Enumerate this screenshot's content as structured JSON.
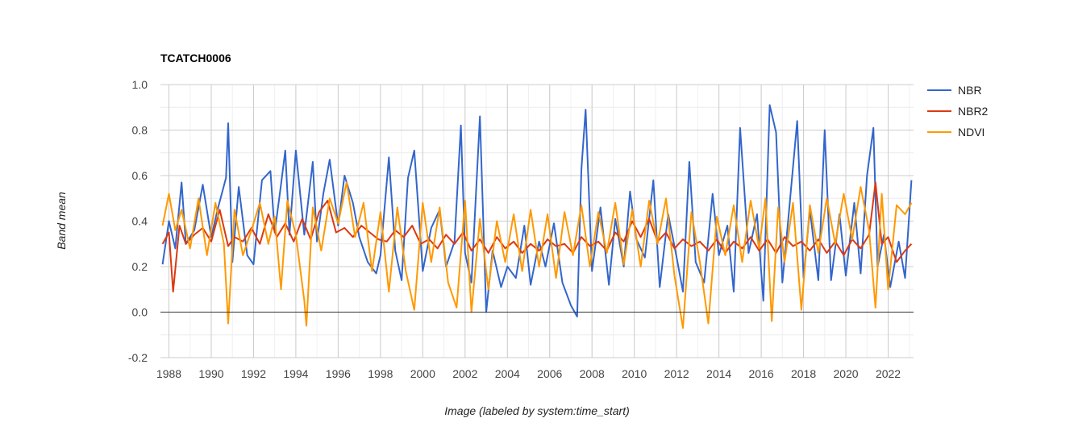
{
  "chart_data": {
    "type": "line",
    "title": "TCATCH0006",
    "xlabel": "Image (labeled by system:time_start)",
    "ylabel": "Band mean",
    "xlim": [
      1987.6,
      2023.2
    ],
    "ylim": [
      -0.2,
      1.0
    ],
    "yticks": [
      "-0.2",
      "0.0",
      "0.2",
      "0.4",
      "0.6",
      "0.8",
      "1.0"
    ],
    "xticks": [
      "1988",
      "1990",
      "1992",
      "1994",
      "1996",
      "1998",
      "2000",
      "2002",
      "2004",
      "2006",
      "2008",
      "2010",
      "2012",
      "2014",
      "2016",
      "2018",
      "2020",
      "2022"
    ],
    "grid": true,
    "legend_position": "right",
    "series": [
      {
        "name": "NBR",
        "color": "#3366cc",
        "x": [
          1987.7,
          1988.0,
          1988.3,
          1988.6,
          1988.8,
          1989.2,
          1989.6,
          1990.0,
          1990.3,
          1990.7,
          1990.8,
          1991.0,
          1991.3,
          1991.7,
          1992.0,
          1992.4,
          1992.8,
          1993.0,
          1993.3,
          1993.5,
          1993.7,
          1994.0,
          1994.4,
          1994.8,
          1995.0,
          1995.3,
          1995.6,
          1996.0,
          1996.3,
          1996.7,
          1997.0,
          1997.4,
          1997.8,
          1998.0,
          1998.4,
          1998.7,
          1999.0,
          1999.3,
          1999.6,
          2000.0,
          2000.4,
          2000.8,
          2001.1,
          2001.5,
          2001.8,
          2002.0,
          2002.3,
          2002.7,
          2003.0,
          2003.3,
          2003.7,
          2004.0,
          2004.4,
          2004.8,
          2005.1,
          2005.5,
          2005.8,
          2006.2,
          2006.6,
          2007.0,
          2007.3,
          2007.5,
          2007.7,
          2008.0,
          2008.4,
          2008.8,
          2009.1,
          2009.5,
          2009.8,
          2010.1,
          2010.5,
          2010.9,
          2011.2,
          2011.6,
          2012.0,
          2012.3,
          2012.6,
          2012.9,
          2013.3,
          2013.7,
          2014.0,
          2014.4,
          2014.7,
          2015.0,
          2015.4,
          2015.8,
          2016.1,
          2016.4,
          2016.7,
          2017.0,
          2017.3,
          2017.7,
          2018.0,
          2018.3,
          2018.7,
          2019.0,
          2019.3,
          2019.7,
          2020.0,
          2020.4,
          2020.7,
          2021.0,
          2021.3,
          2021.5,
          2021.8,
          2022.1,
          2022.5,
          2022.8,
          2023.1
        ],
        "values": [
          0.21,
          0.4,
          0.28,
          0.57,
          0.3,
          0.36,
          0.56,
          0.33,
          0.45,
          0.59,
          0.83,
          0.22,
          0.55,
          0.25,
          0.21,
          0.58,
          0.62,
          0.35,
          0.56,
          0.71,
          0.34,
          0.71,
          0.34,
          0.66,
          0.31,
          0.52,
          0.67,
          0.38,
          0.6,
          0.48,
          0.33,
          0.22,
          0.17,
          0.25,
          0.68,
          0.27,
          0.14,
          0.59,
          0.71,
          0.18,
          0.37,
          0.45,
          0.2,
          0.31,
          0.82,
          0.26,
          0.13,
          0.86,
          0.0,
          0.27,
          0.11,
          0.2,
          0.15,
          0.38,
          0.12,
          0.31,
          0.2,
          0.39,
          0.13,
          0.03,
          -0.02,
          0.63,
          0.89,
          0.18,
          0.46,
          0.12,
          0.41,
          0.2,
          0.53,
          0.32,
          0.24,
          0.58,
          0.11,
          0.43,
          0.24,
          0.09,
          0.66,
          0.22,
          0.13,
          0.52,
          0.25,
          0.38,
          0.09,
          0.81,
          0.26,
          0.43,
          0.05,
          0.91,
          0.79,
          0.13,
          0.43,
          0.84,
          0.15,
          0.45,
          0.14,
          0.8,
          0.14,
          0.43,
          0.16,
          0.48,
          0.17,
          0.6,
          0.81,
          0.2,
          0.34,
          0.11,
          0.31,
          0.15,
          0.58
        ]
      },
      {
        "name": "NBR2",
        "color": "#dc3912",
        "x": [
          1987.7,
          1988.0,
          1988.2,
          1988.5,
          1988.8,
          1989.2,
          1989.6,
          1990.0,
          1990.4,
          1990.8,
          1991.1,
          1991.5,
          1991.9,
          1992.3,
          1992.7,
          1993.1,
          1993.5,
          1993.9,
          1994.3,
          1994.7,
          1995.1,
          1995.5,
          1995.9,
          1996.3,
          1996.7,
          1997.1,
          1997.5,
          1997.9,
          1998.3,
          1998.7,
          1999.1,
          1999.5,
          1999.9,
          2000.3,
          2000.7,
          2001.1,
          2001.5,
          2001.9,
          2002.3,
          2002.7,
          2003.1,
          2003.5,
          2003.9,
          2004.3,
          2004.7,
          2005.1,
          2005.5,
          2005.9,
          2006.3,
          2006.7,
          2007.1,
          2007.5,
          2007.9,
          2008.3,
          2008.7,
          2009.1,
          2009.5,
          2009.9,
          2010.3,
          2010.7,
          2011.1,
          2011.5,
          2011.9,
          2012.3,
          2012.7,
          2013.1,
          2013.5,
          2013.9,
          2014.3,
          2014.7,
          2015.1,
          2015.5,
          2015.9,
          2016.3,
          2016.7,
          2017.1,
          2017.5,
          2017.9,
          2018.3,
          2018.7,
          2019.1,
          2019.5,
          2019.9,
          2020.3,
          2020.7,
          2021.1,
          2021.4,
          2021.7,
          2022.0,
          2022.4,
          2022.8,
          2023.1
        ],
        "values": [
          0.3,
          0.35,
          0.09,
          0.38,
          0.3,
          0.34,
          0.37,
          0.31,
          0.45,
          0.29,
          0.33,
          0.31,
          0.37,
          0.3,
          0.43,
          0.33,
          0.39,
          0.31,
          0.41,
          0.32,
          0.44,
          0.49,
          0.35,
          0.37,
          0.33,
          0.38,
          0.35,
          0.32,
          0.31,
          0.36,
          0.33,
          0.38,
          0.3,
          0.32,
          0.28,
          0.34,
          0.3,
          0.35,
          0.27,
          0.32,
          0.26,
          0.33,
          0.28,
          0.31,
          0.26,
          0.3,
          0.27,
          0.32,
          0.29,
          0.3,
          0.26,
          0.33,
          0.29,
          0.31,
          0.27,
          0.35,
          0.31,
          0.4,
          0.33,
          0.41,
          0.31,
          0.35,
          0.28,
          0.32,
          0.29,
          0.31,
          0.27,
          0.32,
          0.26,
          0.31,
          0.28,
          0.33,
          0.27,
          0.32,
          0.26,
          0.33,
          0.29,
          0.31,
          0.27,
          0.32,
          0.26,
          0.31,
          0.25,
          0.32,
          0.28,
          0.34,
          0.57,
          0.3,
          0.33,
          0.22,
          0.27,
          0.3
        ]
      },
      {
        "name": "NDVI",
        "color": "#ff9900",
        "x": [
          1987.7,
          1988.0,
          1988.3,
          1988.6,
          1989.0,
          1989.4,
          1989.8,
          1990.2,
          1990.6,
          1990.8,
          1991.1,
          1991.5,
          1991.9,
          1992.3,
          1992.7,
          1993.0,
          1993.3,
          1993.6,
          1994.0,
          1994.4,
          1994.5,
          1994.8,
          1995.2,
          1995.6,
          1996.0,
          1996.4,
          1996.8,
          1997.2,
          1997.6,
          1998.0,
          1998.4,
          1998.8,
          1999.2,
          1999.6,
          2000.0,
          2000.4,
          2000.8,
          2001.2,
          2001.6,
          2002.0,
          2002.3,
          2002.7,
          2003.1,
          2003.5,
          2003.9,
          2004.3,
          2004.7,
          2005.1,
          2005.5,
          2005.9,
          2006.3,
          2006.7,
          2007.1,
          2007.5,
          2007.9,
          2008.3,
          2008.7,
          2009.1,
          2009.5,
          2009.9,
          2010.3,
          2010.7,
          2011.1,
          2011.5,
          2011.9,
          2012.3,
          2012.7,
          2013.1,
          2013.5,
          2013.9,
          2014.3,
          2014.7,
          2015.1,
          2015.5,
          2015.9,
          2016.2,
          2016.5,
          2016.8,
          2017.1,
          2017.5,
          2017.9,
          2018.3,
          2018.7,
          2019.1,
          2019.5,
          2019.9,
          2020.3,
          2020.7,
          2021.1,
          2021.4,
          2021.7,
          2022.0,
          2022.4,
          2022.8,
          2023.1
        ],
        "values": [
          0.38,
          0.52,
          0.36,
          0.45,
          0.28,
          0.5,
          0.25,
          0.48,
          0.3,
          -0.05,
          0.45,
          0.25,
          0.36,
          0.48,
          0.3,
          0.42,
          0.1,
          0.49,
          0.34,
          0.05,
          -0.06,
          0.46,
          0.27,
          0.5,
          0.39,
          0.57,
          0.33,
          0.48,
          0.18,
          0.44,
          0.09,
          0.46,
          0.18,
          0.01,
          0.48,
          0.22,
          0.46,
          0.13,
          0.02,
          0.49,
          0.0,
          0.41,
          0.1,
          0.4,
          0.22,
          0.43,
          0.18,
          0.45,
          0.2,
          0.43,
          0.15,
          0.44,
          0.25,
          0.47,
          0.2,
          0.44,
          0.26,
          0.48,
          0.21,
          0.45,
          0.2,
          0.49,
          0.3,
          0.5,
          0.16,
          -0.07,
          0.44,
          0.22,
          -0.05,
          0.42,
          0.25,
          0.47,
          0.22,
          0.49,
          0.28,
          0.5,
          -0.04,
          0.46,
          0.22,
          0.48,
          0.01,
          0.47,
          0.26,
          0.5,
          0.3,
          0.52,
          0.32,
          0.55,
          0.36,
          0.02,
          0.52,
          0.1,
          0.47,
          0.43,
          0.48
        ]
      }
    ]
  }
}
